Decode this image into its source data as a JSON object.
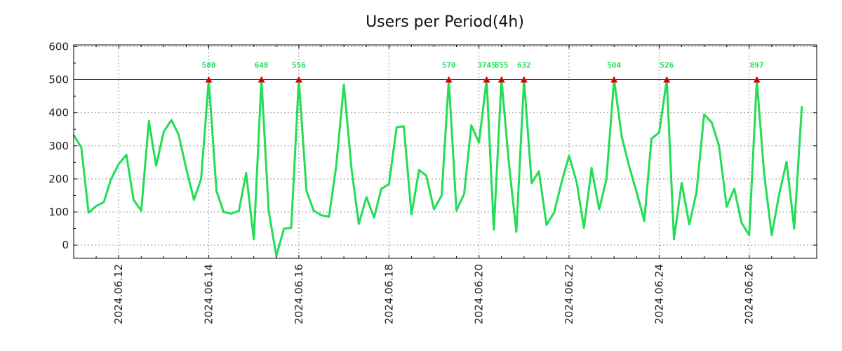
{
  "chart_data": {
    "type": "line",
    "title": "Users per Period(4h)",
    "xlabel": "",
    "ylabel": "",
    "ylim": [
      -40,
      605
    ],
    "yticks": [
      0,
      100,
      200,
      300,
      400,
      500,
      600
    ],
    "grid": true,
    "xrange_days": [
      0,
      16.5
    ],
    "xticks": [
      {
        "label": "2024.06.12",
        "day": 1
      },
      {
        "label": "2024.06.14",
        "day": 3
      },
      {
        "label": "2024.06.16",
        "day": 5
      },
      {
        "label": "2024.06.18",
        "day": 7
      },
      {
        "label": "2024.06.20",
        "day": 9
      },
      {
        "label": "2024.06.22",
        "day": 11
      },
      {
        "label": "2024.06.24",
        "day": 13
      },
      {
        "label": "2024.06.26",
        "day": 15
      }
    ],
    "threshold": 500,
    "series": [
      {
        "name": "Users",
        "color": "#22dd55",
        "peak_marker_color": "#dd0000",
        "points": [
          [
            0.0,
            333
          ],
          [
            0.17,
            295
          ],
          [
            0.33,
            98
          ],
          [
            0.5,
            118
          ],
          [
            0.67,
            130
          ],
          [
            0.83,
            200
          ],
          [
            1.0,
            245
          ],
          [
            1.17,
            273
          ],
          [
            1.33,
            137
          ],
          [
            1.5,
            104
          ],
          [
            1.67,
            375
          ],
          [
            1.83,
            240
          ],
          [
            2.0,
            343
          ],
          [
            2.17,
            378
          ],
          [
            2.33,
            334
          ],
          [
            2.5,
            230
          ],
          [
            2.67,
            137
          ],
          [
            2.83,
            200
          ],
          [
            3.0,
            500,
            "580"
          ],
          [
            3.17,
            164
          ],
          [
            3.33,
            100
          ],
          [
            3.5,
            95
          ],
          [
            3.67,
            104
          ],
          [
            3.83,
            218
          ],
          [
            4.0,
            18
          ],
          [
            4.17,
            500,
            "648"
          ],
          [
            4.33,
            104
          ],
          [
            4.5,
            -33
          ],
          [
            4.67,
            50
          ],
          [
            4.83,
            52
          ],
          [
            5.0,
            500,
            "556"
          ],
          [
            5.17,
            164
          ],
          [
            5.33,
            104
          ],
          [
            5.5,
            90
          ],
          [
            5.67,
            86
          ],
          [
            5.83,
            240
          ],
          [
            6.0,
            485
          ],
          [
            6.17,
            230
          ],
          [
            6.33,
            64
          ],
          [
            6.5,
            145
          ],
          [
            6.67,
            83
          ],
          [
            6.83,
            170
          ],
          [
            7.0,
            184
          ],
          [
            7.17,
            356
          ],
          [
            7.33,
            359
          ],
          [
            7.5,
            93
          ],
          [
            7.67,
            227
          ],
          [
            7.83,
            210
          ],
          [
            8.0,
            108
          ],
          [
            8.17,
            150
          ],
          [
            8.33,
            500,
            "570"
          ],
          [
            8.5,
            104
          ],
          [
            8.67,
            155
          ],
          [
            8.83,
            362
          ],
          [
            9.0,
            310
          ],
          [
            9.17,
            500,
            "3745"
          ],
          [
            9.33,
            47
          ],
          [
            9.5,
            500,
            "855"
          ],
          [
            9.67,
            240
          ],
          [
            9.83,
            40
          ],
          [
            10.0,
            500,
            "632"
          ],
          [
            10.17,
            187
          ],
          [
            10.33,
            223
          ],
          [
            10.5,
            61
          ],
          [
            10.67,
            99
          ],
          [
            10.83,
            188
          ],
          [
            11.0,
            270
          ],
          [
            11.17,
            190
          ],
          [
            11.33,
            52
          ],
          [
            11.5,
            233
          ],
          [
            11.67,
            108
          ],
          [
            11.83,
            200
          ],
          [
            12.0,
            500,
            "504"
          ],
          [
            12.17,
            328
          ],
          [
            12.33,
            240
          ],
          [
            12.5,
            160
          ],
          [
            12.67,
            73
          ],
          [
            12.83,
            322
          ],
          [
            13.0,
            340
          ],
          [
            13.17,
            500,
            "526"
          ],
          [
            13.33,
            18
          ],
          [
            13.5,
            188
          ],
          [
            13.67,
            62
          ],
          [
            13.83,
            160
          ],
          [
            14.0,
            395
          ],
          [
            14.17,
            370
          ],
          [
            14.33,
            300
          ],
          [
            14.5,
            116
          ],
          [
            14.67,
            170
          ],
          [
            14.83,
            68
          ],
          [
            15.0,
            30
          ],
          [
            15.17,
            500,
            "897"
          ],
          [
            15.33,
            218
          ],
          [
            15.5,
            30
          ],
          [
            15.67,
            156
          ],
          [
            15.83,
            252
          ],
          [
            16.0,
            50
          ],
          [
            16.17,
            420
          ]
        ]
      }
    ]
  }
}
